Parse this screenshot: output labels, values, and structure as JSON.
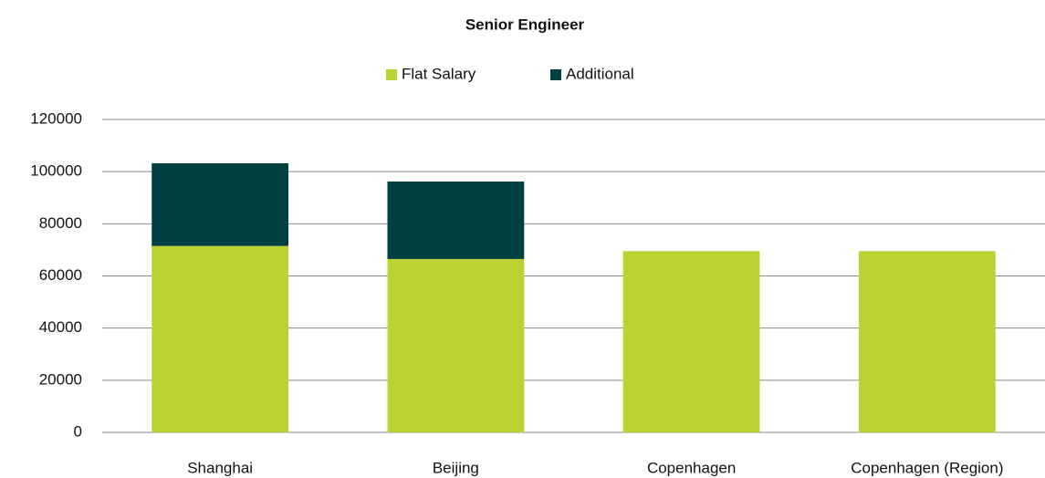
{
  "chart_data": {
    "type": "stacked_bar",
    "title": "Senior Engineer",
    "categories": [
      "Shanghai",
      "Beijing",
      "Copenhagen",
      "Copenhagen (Region)"
    ],
    "series": [
      {
        "name": "Flat Salary",
        "color": "#bcd232",
        "values": [
          71500,
          66500,
          69500,
          69500
        ]
      },
      {
        "name": "Additional",
        "color": "#003f3f",
        "values": [
          31700,
          29700,
          0,
          0
        ]
      }
    ],
    "ylim": [
      0,
      120000
    ],
    "yticks": [
      0,
      20000,
      40000,
      60000,
      80000,
      100000,
      120000
    ],
    "grid": true,
    "legend": "top"
  }
}
